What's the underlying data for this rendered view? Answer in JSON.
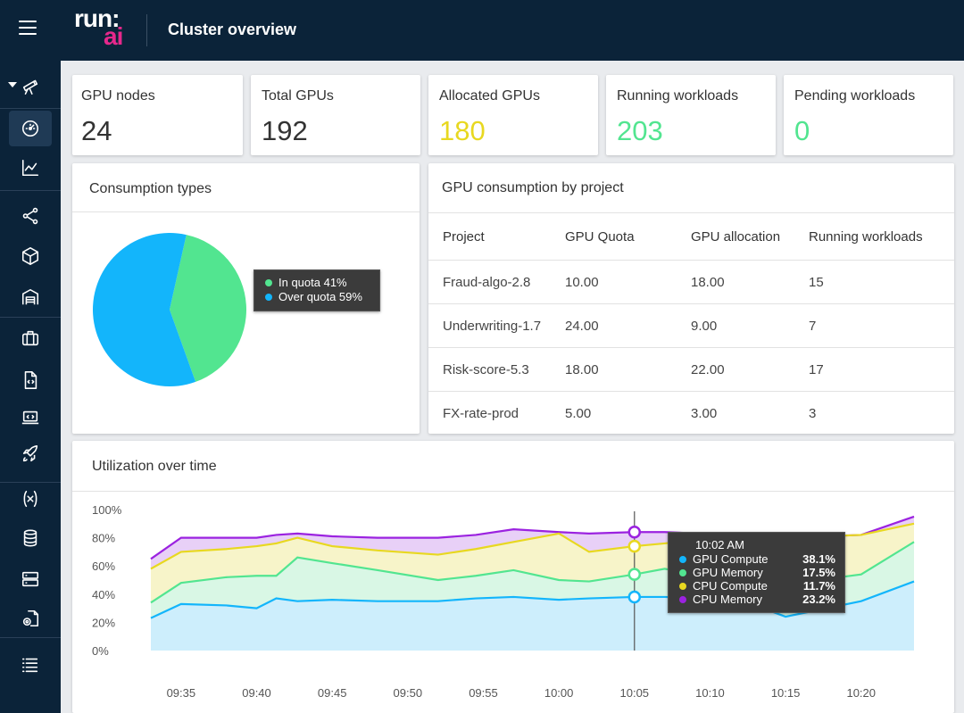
{
  "header": {
    "title": "Cluster overview",
    "logo_top": "run:",
    "logo_bottom": "ai"
  },
  "sidebar": {
    "items": [
      {
        "icon": "telescope-icon"
      },
      {
        "icon": "dashboard-gauge-icon"
      },
      {
        "icon": "analytics-chart-icon"
      },
      {
        "icon": "nodes-graph-icon"
      },
      {
        "icon": "cube-icon"
      },
      {
        "icon": "warehouse-icon"
      },
      {
        "icon": "briefcase-icon"
      },
      {
        "icon": "code-file-icon"
      },
      {
        "icon": "laptop-code-icon"
      },
      {
        "icon": "rocket-icon"
      },
      {
        "icon": "function-variable-icon"
      },
      {
        "icon": "database-icon"
      },
      {
        "icon": "server-icon"
      },
      {
        "icon": "settings-file-icon"
      },
      {
        "icon": "list-settings-icon"
      }
    ],
    "active_index": 1
  },
  "stats": [
    {
      "label": "GPU nodes",
      "value": "24",
      "color": "#333333"
    },
    {
      "label": "Total GPUs",
      "value": "192",
      "color": "#333333"
    },
    {
      "label": "Allocated GPUs",
      "value": "180",
      "color": "#e8d820"
    },
    {
      "label": "Running workloads",
      "value": "203",
      "color": "#52e590"
    },
    {
      "label": "Pending workloads",
      "value": "0",
      "color": "#52e590"
    }
  ],
  "consumption": {
    "title": "Consumption types",
    "tooltip": [
      {
        "label": "In quota 41%",
        "color": "#52e590"
      },
      {
        "label": "Over quota 59%",
        "color": "#13b5fb"
      }
    ]
  },
  "projects": {
    "title": "GPU consumption by project",
    "columns": [
      "Project",
      "GPU Quota",
      "GPU allocation",
      "Running workloads"
    ],
    "rows": [
      [
        "Fraud-algo-2.8",
        "10.00",
        "18.00",
        "15"
      ],
      [
        "Underwriting-1.7",
        "24.00",
        "9.00",
        "7"
      ],
      [
        "Risk-score-5.3",
        "18.00",
        "22.00",
        "17"
      ],
      [
        "FX-rate-prod",
        "5.00",
        "3.00",
        "3"
      ]
    ]
  },
  "utilization": {
    "title": "Utilization over time",
    "tooltip": {
      "time": "10:02 AM",
      "rows": [
        {
          "label": "GPU Compute",
          "value": "38.1%",
          "color": "#13b5fb"
        },
        {
          "label": "GPU Memory",
          "value": "17.5%",
          "color": "#52e590"
        },
        {
          "label": "CPU Compute",
          "value": "11.7%",
          "color": "#e8d820"
        },
        {
          "label": "CPU Memory",
          "value": "23.2%",
          "color": "#9b22e0"
        }
      ]
    }
  },
  "chart_data": [
    {
      "type": "pie",
      "title": "Consumption types",
      "labels": [
        "In quota",
        "Over quota"
      ],
      "values": [
        41,
        59
      ],
      "colors": [
        "#52e590",
        "#13b5fb"
      ]
    },
    {
      "type": "area",
      "title": "Utilization over time",
      "x_tick_labels": [
        "09:35",
        "09:40",
        "09:45",
        "09:50",
        "09:55",
        "10:00",
        "10:05",
        "10:10",
        "10:15",
        "10:20"
      ],
      "y_tick_labels": [
        "100%",
        "80%",
        "60%",
        "40%",
        "20%",
        "0%"
      ],
      "ylim": [
        0,
        100
      ],
      "x_minutes": [
        -2,
        0,
        3,
        5,
        6.3,
        7.7,
        10,
        13,
        17,
        19.5,
        22,
        25,
        27,
        30,
        32,
        37,
        40,
        45,
        48.5
      ],
      "x_origin_label": "09:35",
      "series": [
        {
          "name": "GPU Compute",
          "color": "#13b5fb",
          "values": [
            23,
            33,
            32,
            30,
            37,
            35,
            36,
            35,
            35,
            37,
            38,
            36,
            37,
            38,
            38,
            36,
            24,
            35,
            49
          ]
        },
        {
          "name": "GPU Memory",
          "color": "#52e590",
          "values": [
            34,
            48,
            52,
            53,
            53,
            66,
            62,
            57,
            50,
            53,
            57,
            50,
            49,
            54,
            58,
            48,
            47,
            54,
            77
          ]
        },
        {
          "name": "CPU Compute",
          "color": "#e8d820",
          "values": [
            58,
            70,
            72,
            74,
            76,
            80,
            74,
            71,
            68,
            72,
            77,
            83,
            70,
            74,
            76,
            82,
            80,
            82,
            90
          ]
        },
        {
          "name": "CPU Memory",
          "color": "#9b22e0",
          "values": [
            65,
            80,
            80,
            80,
            82,
            83,
            81,
            80,
            80,
            82,
            86,
            84,
            83,
            84,
            84,
            82,
            80,
            82,
            95
          ]
        }
      ],
      "hover_x_minutes": 30,
      "grid": false,
      "legend": "none"
    }
  ]
}
